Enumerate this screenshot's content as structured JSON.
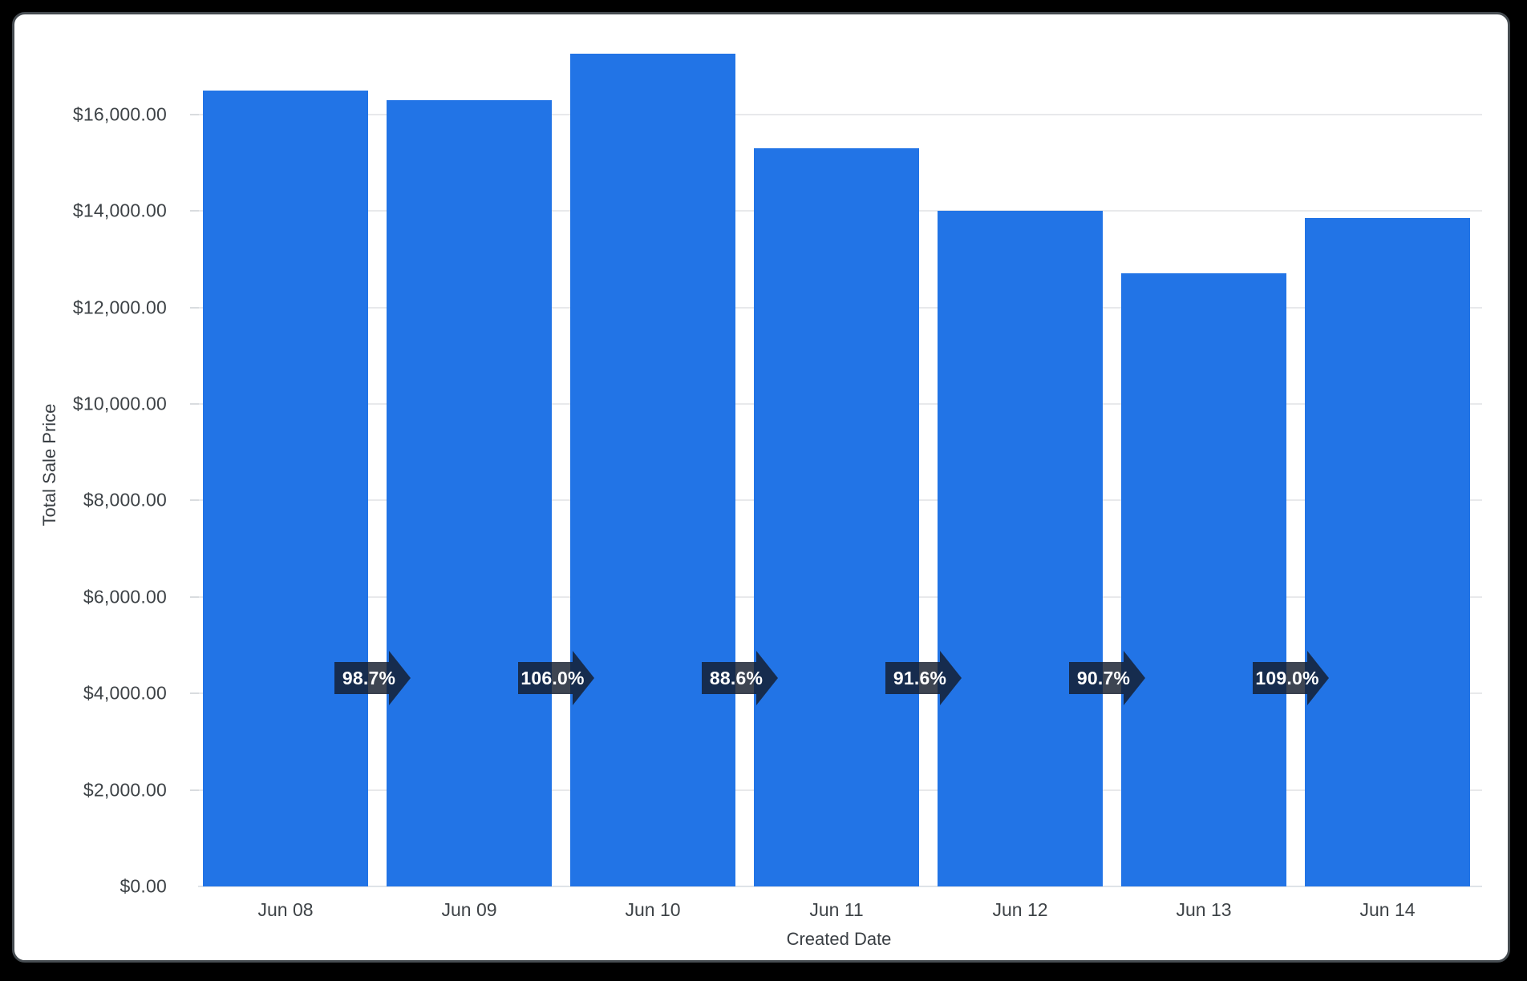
{
  "window": {
    "background": "#000000",
    "panel_background": "#ffffff",
    "panel_border": "#464c51"
  },
  "chart_data": {
    "type": "bar",
    "title": "",
    "xlabel": "Created Date",
    "ylabel": "Total Sale Price",
    "categories": [
      "Jun 08",
      "Jun 09",
      "Jun 10",
      "Jun 11",
      "Jun 12",
      "Jun 13",
      "Jun 14"
    ],
    "series": [
      {
        "name": "Total Sale Price",
        "values": [
          16500,
          16290,
          17265,
          15295,
          14010,
          12710,
          13850
        ]
      }
    ],
    "bar_color": "#2274e6",
    "ylim": [
      0,
      17400
    ],
    "grid": "horizontal",
    "legend_position": "none",
    "y_ticks": {
      "values": [
        0,
        2000,
        4000,
        6000,
        8000,
        10000,
        12000,
        14000,
        16000
      ],
      "labels": [
        "$0.00",
        "$2,000.00",
        "$4,000.00",
        "$6,000.00",
        "$8,000.00",
        "$10,000.00",
        "$12,000.00",
        "$14,000.00",
        "$16,000.00"
      ]
    },
    "growth_arrows": {
      "description": "period-over-period ratio shown between adjacent bars",
      "labels": [
        "98.7%",
        "106.0%",
        "88.6%",
        "91.6%",
        "90.7%",
        "109.0%"
      ],
      "fill_color": "#141c2c",
      "fill_opacity": 0.82,
      "text_color": "#ffffff"
    }
  }
}
